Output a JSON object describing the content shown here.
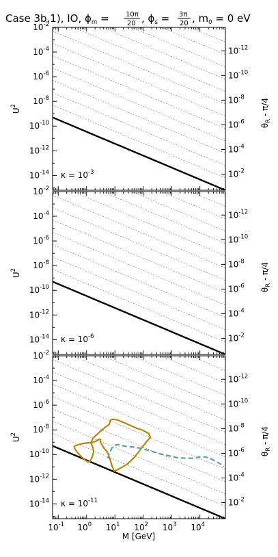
{
  "title": {
    "prefix": "Case 3b.1), IO, ",
    "phi_m_symbol": "ϕ",
    "phi_m_sub": "m",
    "phi_m_num": "10π",
    "phi_m_den": "20",
    "phi_s_symbol": "ϕ",
    "phi_s_sub": "s",
    "phi_s_num": "3π",
    "phi_s_den": "20",
    "m0_label": "m",
    "m0_sub": "0",
    "m0_value": " = 0 eV"
  },
  "x_axis": {
    "label": "M [GeV]",
    "type": "log",
    "lim_log10": [
      -1.2,
      4.9
    ],
    "tick_exponents": [
      -1,
      0,
      1,
      2,
      3,
      4
    ],
    "base": "10"
  },
  "chart_data": [
    {
      "type": "line",
      "panel": "top",
      "annotation": {
        "text": "κ = 10",
        "exp": "-3"
      },
      "ylabel": "U",
      "ylabel_exp": "2",
      "right_ylabel": "θ",
      "right_ylabel_sub": "R",
      "right_ylabel_rest": " - π/4",
      "y_axis": {
        "type": "log",
        "lim_log10": [
          -15.2,
          -2
        ],
        "tick_exponents": [
          -2,
          -4,
          -6,
          -8,
          -10,
          -12,
          -14
        ]
      },
      "right_ticks": {
        "exponents": [
          -12,
          -10,
          -8,
          -6,
          -4,
          -2
        ],
        "at_left_log10": [
          -3.9,
          -5.9,
          -7.9,
          -9.9,
          -11.9,
          -13.9
        ]
      },
      "series": [
        {
          "style": "solid-black",
          "x_log10": [
            -1.2,
            4.9
          ],
          "y_log10": [
            -9.3,
            -15.2
          ]
        }
      ],
      "contours": []
    },
    {
      "type": "line",
      "panel": "middle",
      "annotation": {
        "text": "κ = 10",
        "exp": "-6"
      },
      "ylabel": "U",
      "ylabel_exp": "2",
      "right_ylabel": "θ",
      "right_ylabel_sub": "R",
      "right_ylabel_rest": " - π/4",
      "y_axis": {
        "type": "log",
        "lim_log10": [
          -15.2,
          -2
        ],
        "tick_exponents": [
          -2,
          -4,
          -6,
          -8,
          -10,
          -12,
          -14
        ]
      },
      "right_ticks": {
        "exponents": [
          -12,
          -10,
          -8,
          -6,
          -4,
          -2
        ],
        "at_left_log10": [
          -3.9,
          -5.9,
          -7.9,
          -9.9,
          -11.9,
          -13.9
        ]
      },
      "series": [
        {
          "style": "solid-black",
          "x_log10": [
            -1.2,
            4.9
          ],
          "y_log10": [
            -9.3,
            -15.2
          ]
        }
      ],
      "contours": []
    },
    {
      "type": "line",
      "panel": "bottom",
      "annotation": {
        "text": "κ = 10",
        "exp": "-11"
      },
      "ylabel": "U",
      "ylabel_exp": "2",
      "right_ylabel": "θ",
      "right_ylabel_sub": "R",
      "right_ylabel_rest": " - π/4",
      "y_axis": {
        "type": "log",
        "lim_log10": [
          -15.2,
          -2
        ],
        "tick_exponents": [
          -2,
          -4,
          -6,
          -8,
          -10,
          -12,
          -14
        ]
      },
      "right_ticks": {
        "exponents": [
          -12,
          -10,
          -8,
          -6,
          -4,
          -2
        ],
        "at_left_log10": [
          -3.9,
          -5.9,
          -7.9,
          -9.9,
          -11.9,
          -13.9
        ]
      },
      "series": [
        {
          "style": "solid-black",
          "x_log10": [
            -1.2,
            4.9
          ],
          "y_log10": [
            -9.3,
            -15.2
          ]
        }
      ],
      "contours": [
        {
          "style": "solid",
          "color": "#b8860b",
          "x_log10": [
            -0.45,
            -0.4,
            -0.3,
            -0.2,
            -0.05,
            0.05,
            0.12,
            0.2,
            0.25,
            0.22,
            0.15,
            0.22,
            0.35,
            0.5,
            0.65,
            0.8,
            0.82,
            0.85,
            0.9,
            1.0,
            1.15,
            1.35,
            1.55,
            1.75,
            2.0,
            2.2,
            2.25,
            2.1,
            1.9,
            1.7,
            1.45,
            1.2,
            0.98,
            0.9,
            0.85,
            0.8,
            0.75,
            0.7,
            0.62,
            0.55,
            0.5,
            0.48,
            0.5,
            0.44,
            0.38,
            0.3,
            0.18,
            0.05,
            -0.1,
            -0.3,
            -0.45
          ],
          "y_log10": [
            -9.35,
            -9.6,
            -9.9,
            -10.15,
            -10.45,
            -10.6,
            -10.55,
            -10.2,
            -9.8,
            -9.4,
            -9.05,
            -8.7,
            -8.4,
            -8.1,
            -7.8,
            -7.55,
            -7.35,
            -7.2,
            -7.15,
            -7.15,
            -7.25,
            -7.45,
            -7.65,
            -7.85,
            -8.05,
            -8.3,
            -8.6,
            -9.0,
            -9.6,
            -10.2,
            -10.75,
            -11.1,
            -11.35,
            -10.95,
            -10.55,
            -10.2,
            -9.9,
            -9.7,
            -9.5,
            -9.25,
            -9.05,
            -8.9,
            -8.8,
            -8.75,
            -8.85,
            -8.95,
            -9.05,
            -9.05,
            -9.1,
            -9.2,
            -9.35
          ]
        },
        {
          "style": "dashed",
          "color": "#5f9ea0",
          "x_log10": [
            0.75,
            0.8,
            0.9,
            1.0,
            1.1,
            1.2,
            1.4,
            1.7,
            2.0,
            2.3,
            2.6,
            2.9,
            3.2,
            3.5,
            3.75,
            4.0,
            4.2,
            4.4,
            4.6,
            4.75,
            4.85
          ],
          "y_log10": [
            -10.3,
            -9.9,
            -9.45,
            -9.25,
            -9.2,
            -9.25,
            -9.35,
            -9.4,
            -9.55,
            -9.75,
            -9.95,
            -10.1,
            -10.25,
            -10.3,
            -10.3,
            -10.2,
            -10.2,
            -10.35,
            -10.6,
            -10.8,
            -10.95
          ]
        }
      ]
    }
  ]
}
